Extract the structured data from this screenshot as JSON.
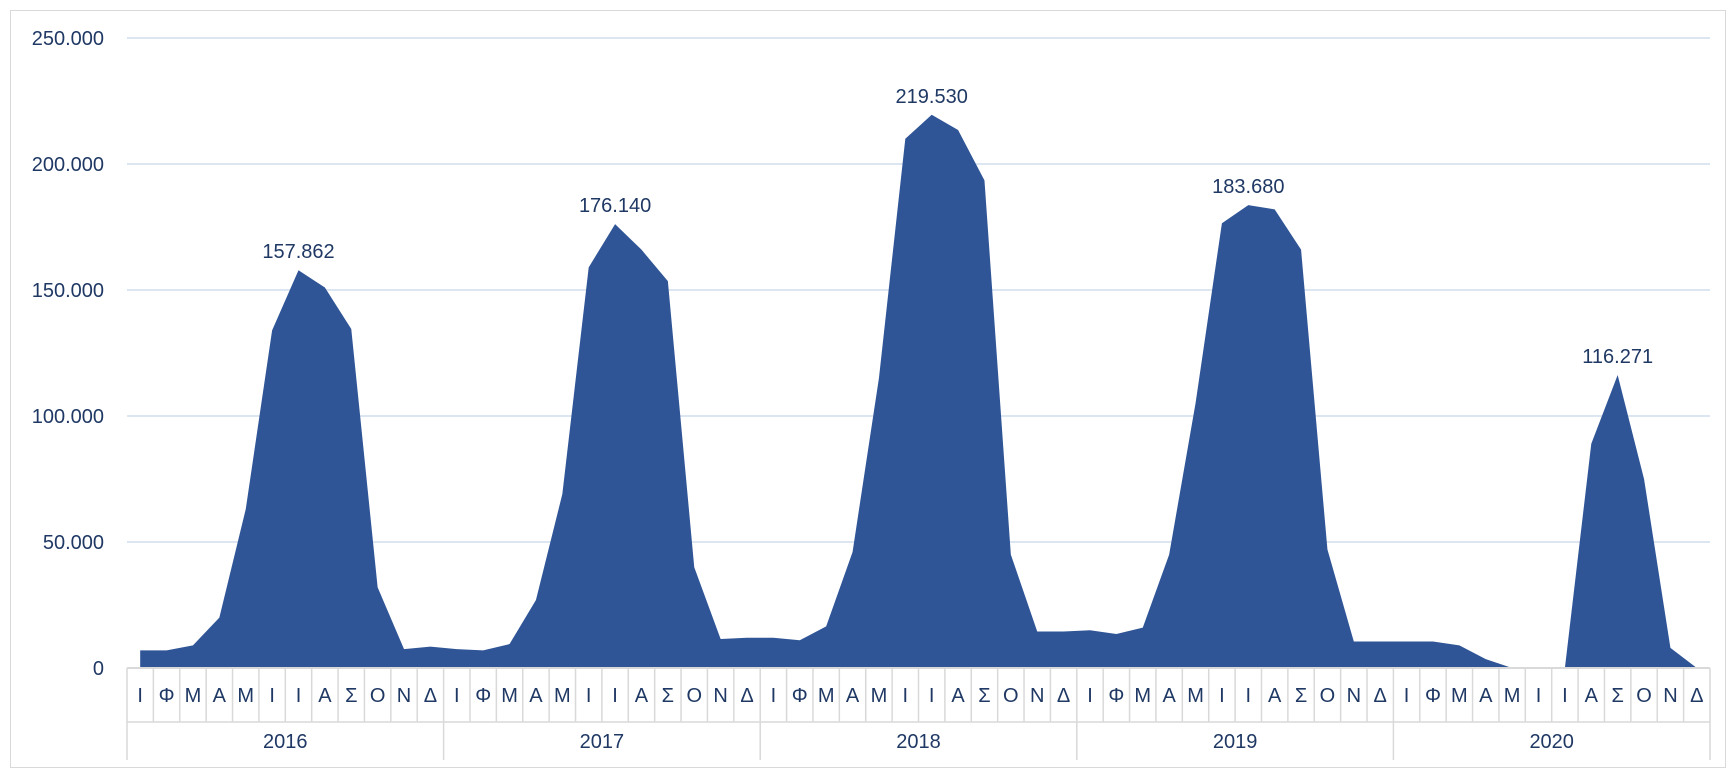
{
  "chart_data": {
    "type": "area",
    "title": "",
    "xlabel": "",
    "ylabel": "",
    "ylim": [
      0,
      250000
    ],
    "yticks": [
      0,
      50000,
      100000,
      150000,
      200000,
      250000
    ],
    "ytick_labels": [
      "0",
      "50.000",
      "100.000",
      "150.000",
      "200.000",
      "250.000"
    ],
    "grid": true,
    "legend": "none",
    "colors": {
      "area": "#2f5597",
      "grid": "#dce6f2",
      "axis": "#d9d9d9",
      "text": "#1f3864"
    },
    "years": [
      "2016",
      "2017",
      "2018",
      "2019",
      "2020"
    ],
    "month_labels": [
      "Ι",
      "Φ",
      "Μ",
      "Α",
      "Μ",
      "Ι",
      "Ι",
      "Α",
      "Σ",
      "Ο",
      "Ν",
      "Δ"
    ],
    "series": [
      {
        "values": [
          7000,
          7000,
          9000,
          20000,
          63000,
          134000,
          157862,
          151000,
          134500,
          32000,
          7500,
          8500,
          7500,
          7000,
          9500,
          27000,
          69000,
          159000,
          176140,
          166000,
          153500,
          40000,
          11500,
          12000,
          12000,
          11000,
          16500,
          46000,
          115000,
          210000,
          219530,
          213500,
          193500,
          45000,
          14500,
          14500,
          15000,
          13500,
          16000,
          45000,
          105000,
          176500,
          183680,
          182000,
          166000,
          47000,
          10500,
          10500,
          10500,
          10500,
          9000,
          3500,
          0,
          0,
          0,
          89000,
          116271,
          75000,
          8000,
          0
        ]
      }
    ],
    "data_labels": [
      {
        "index": 6,
        "text": "157.862"
      },
      {
        "index": 18,
        "text": "176.140"
      },
      {
        "index": 30,
        "text": "219.530"
      },
      {
        "index": 42,
        "text": "183.680"
      },
      {
        "index": 56,
        "text": "116.271"
      }
    ]
  }
}
